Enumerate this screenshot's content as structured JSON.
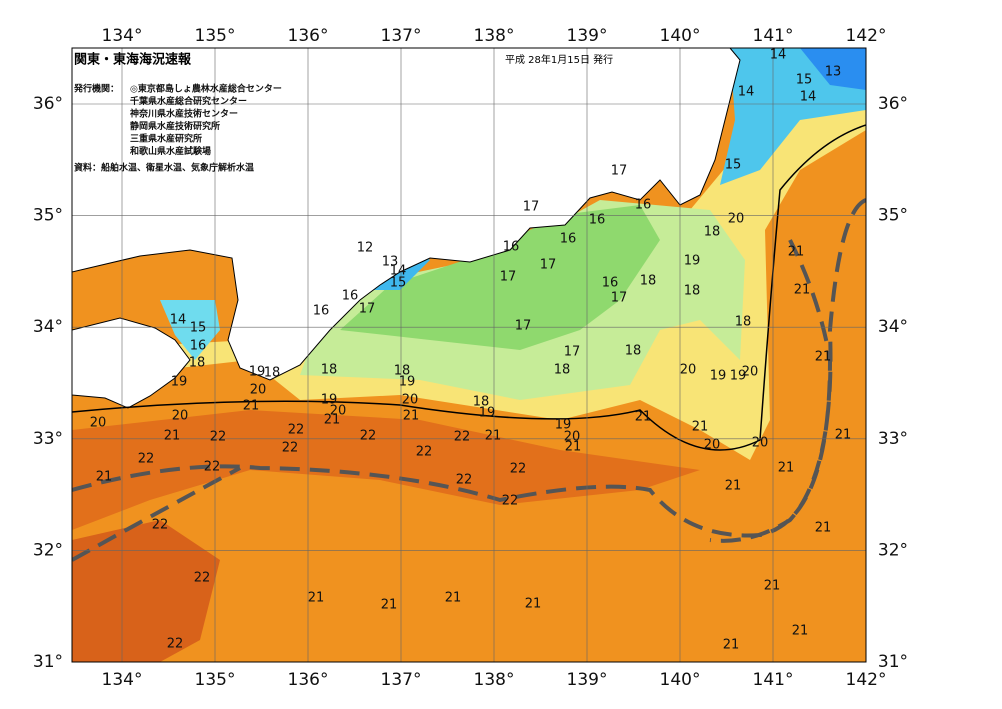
{
  "header": {
    "title": "関東・東海海況速報",
    "date": "平成 28年1月15日 発行",
    "issuer_label": "発行機関：",
    "issuers": [
      "◎東京都島しょ農林水産総合センター",
      "千葉県水産総合研究センター",
      "神奈川県水産技術センター",
      "静岡県水産技術研究所",
      "三重県水産研究所",
      "和歌山県水産試験場"
    ],
    "source": "資料：船舶水温、衛星水温、気象庁解析水温"
  },
  "map": {
    "lon_ticks": [
      {
        "value": 134,
        "label": "134°"
      },
      {
        "value": 135,
        "label": "135°"
      },
      {
        "value": 136,
        "label": "136°"
      },
      {
        "value": 137,
        "label": "137°"
      },
      {
        "value": 138,
        "label": "138°"
      },
      {
        "value": 139,
        "label": "139°"
      },
      {
        "value": 140,
        "label": "140°"
      },
      {
        "value": 141,
        "label": "141°"
      },
      {
        "value": 142,
        "label": "142°"
      }
    ],
    "lat_ticks": [
      {
        "value": 31,
        "label": "31°"
      },
      {
        "value": 32,
        "label": "32°"
      },
      {
        "value": 33,
        "label": "33°"
      },
      {
        "value": 34,
        "label": "34°"
      },
      {
        "value": 35,
        "label": "35°"
      },
      {
        "value": 36,
        "label": "36°"
      }
    ],
    "contour_labels": [
      14,
      13,
      15,
      14,
      14,
      15,
      16,
      17,
      17,
      16,
      16,
      16,
      17,
      17,
      12,
      13,
      14,
      15,
      16,
      16,
      17,
      17,
      16,
      17,
      18,
      18,
      19,
      18,
      18,
      17,
      18,
      18,
      20,
      21,
      21,
      21,
      20,
      19,
      19,
      20,
      14,
      15,
      16,
      18,
      19,
      19,
      18,
      20,
      18,
      18,
      19,
      19,
      20,
      20,
      18,
      19,
      21,
      20,
      20,
      21,
      21,
      21,
      22,
      22,
      22,
      22,
      22,
      21,
      19,
      20,
      21,
      21,
      21,
      20,
      20,
      21,
      22,
      22,
      22,
      22,
      22,
      21,
      21,
      21,
      22,
      22,
      21,
      22,
      21,
      21,
      21,
      21,
      21,
      21,
      22,
      21
    ]
  }
}
